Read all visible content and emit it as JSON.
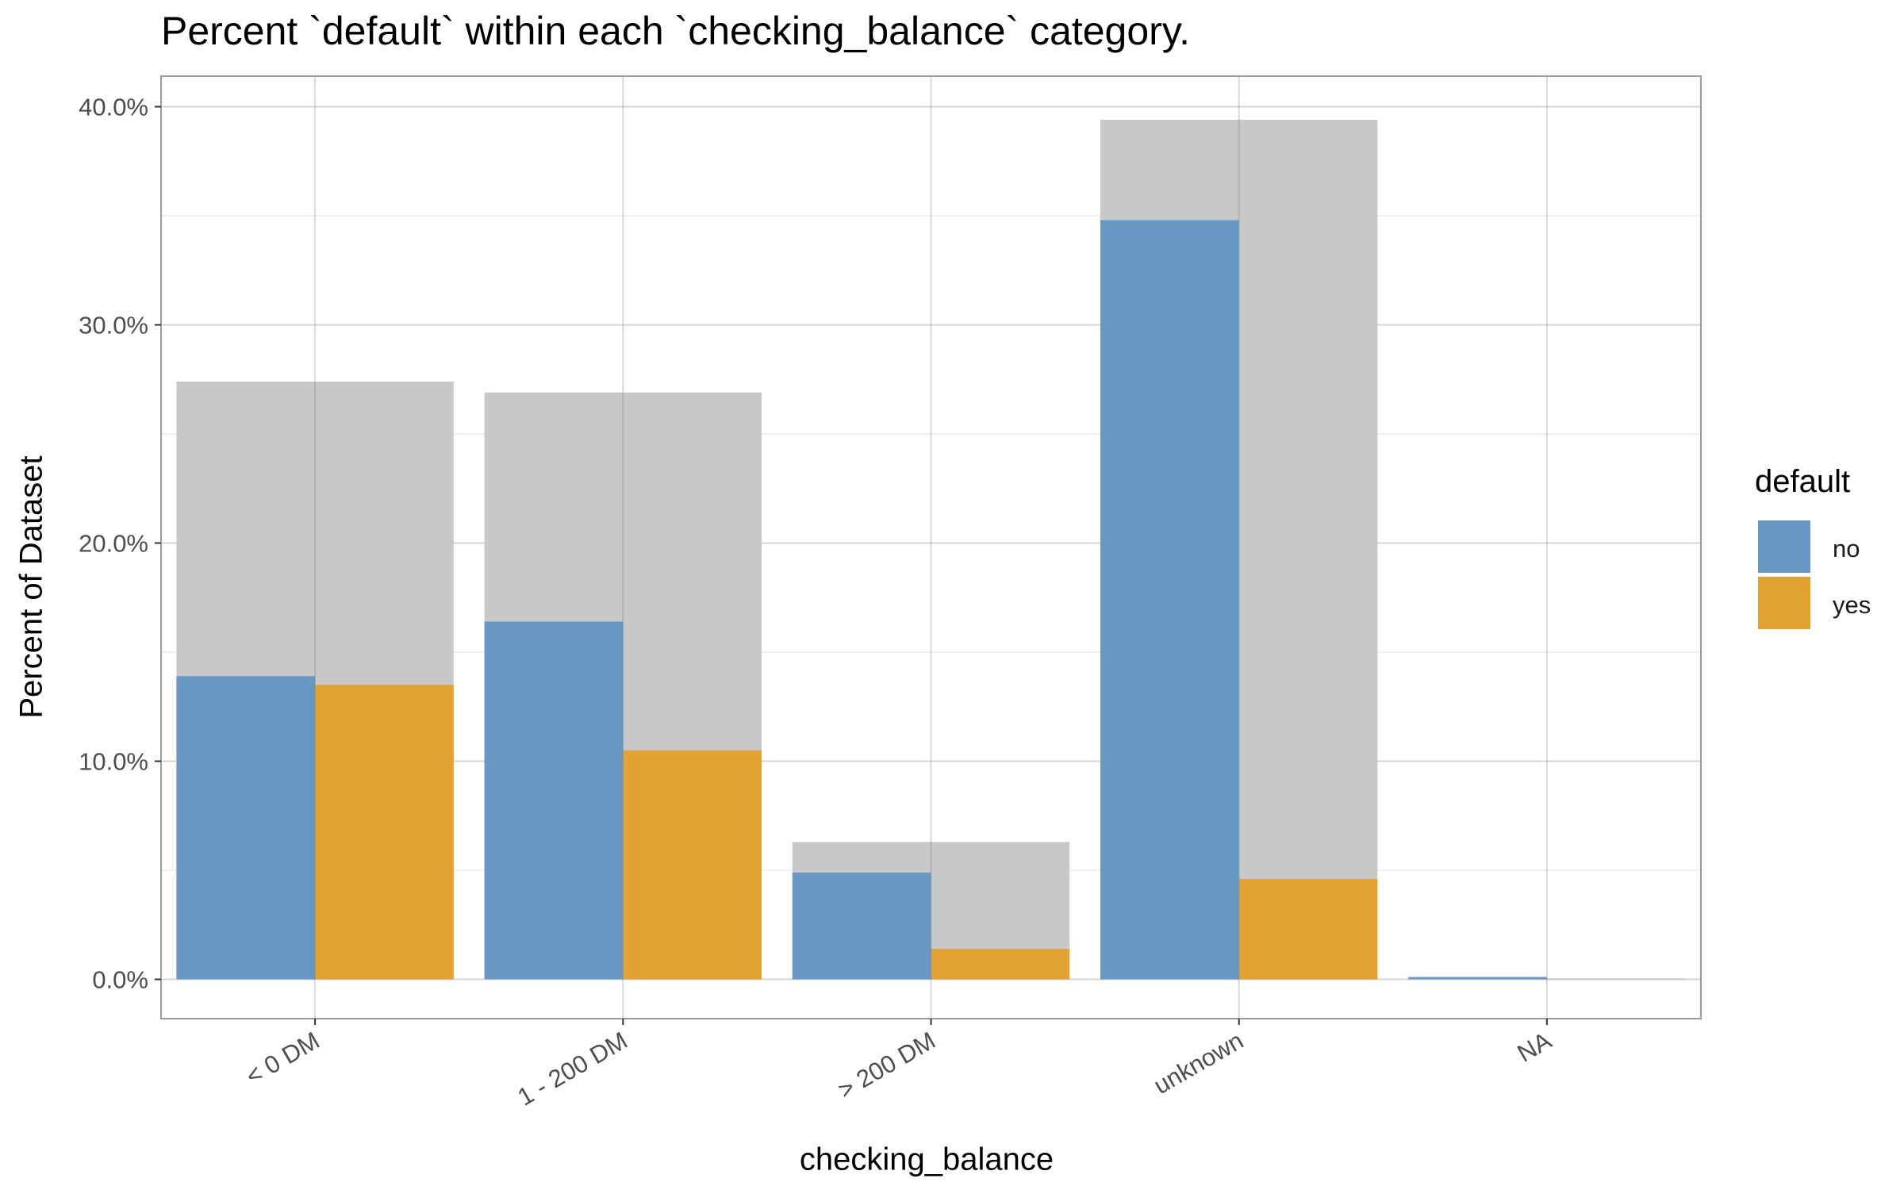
{
  "chart_data": {
    "type": "bar",
    "title": "Percent `default` within each `checking_balance` category.",
    "xlabel": "checking_balance",
    "ylabel": "Percent of Dataset",
    "categories": [
      "< 0 DM",
      "1 - 200 DM",
      "> 200 DM",
      "unknown",
      "NA"
    ],
    "category_totals": [
      27.4,
      26.9,
      6.3,
      39.4,
      0.05
    ],
    "series": [
      {
        "name": "no",
        "values": [
          13.9,
          16.4,
          4.9,
          34.8,
          0.05
        ],
        "color": "#6899C4"
      },
      {
        "name": "yes",
        "values": [
          13.5,
          10.5,
          1.4,
          4.6,
          0.0
        ],
        "color": "#E3A332"
      }
    ],
    "total_bar_color": "#C8C8C8",
    "ylim": [
      -1.8,
      41.4
    ],
    "yticks": [
      0,
      10,
      20,
      30,
      40
    ],
    "ytick_labels": [
      "0.0%",
      "10.0%",
      "20.0%",
      "30.0%",
      "40.0%"
    ],
    "grid": true,
    "legend": {
      "title": "default",
      "position": "right",
      "entries": [
        "no",
        "yes"
      ]
    }
  }
}
